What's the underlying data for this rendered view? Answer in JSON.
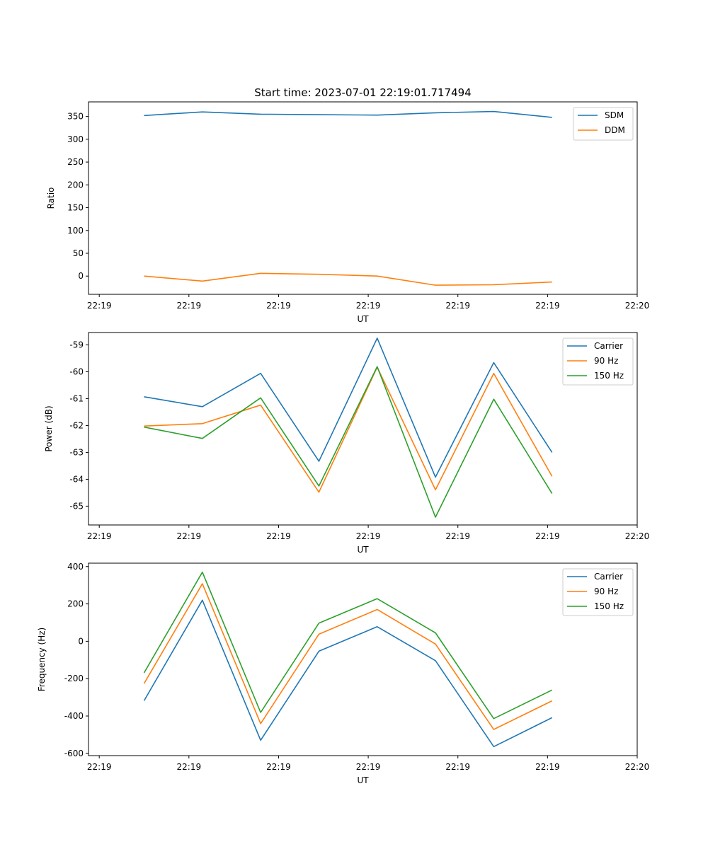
{
  "title": "Start time: 2023-07-01 22:19:01.717494",
  "colors": {
    "blue": "#1f77b4",
    "orange": "#ff7f0e",
    "green": "#2ca02c"
  },
  "chart_data": [
    {
      "id": "ratio",
      "type": "line",
      "ylabel": "Ratio",
      "xlabel": "UT",
      "x_tick_labels": [
        "22:19",
        "22:19",
        "22:19",
        "22:19",
        "22:19",
        "22:19",
        "22:20"
      ],
      "x_ticks": [
        0,
        1,
        2,
        3,
        4,
        5,
        6
      ],
      "xlim": [
        -0.12,
        6.0
      ],
      "x": [
        0.5,
        1.15,
        1.8,
        2.45,
        3.1,
        3.75,
        4.4,
        5.05
      ],
      "ylim": [
        -40,
        382
      ],
      "y_ticks": [
        0,
        50,
        100,
        150,
        200,
        250,
        300,
        350
      ],
      "legend": [
        "SDM",
        "DDM"
      ],
      "series": [
        {
          "name": "SDM",
          "color": "#1f77b4",
          "values": [
            352,
            360,
            355,
            354,
            353,
            358,
            361,
            348
          ]
        },
        {
          "name": "DDM",
          "color": "#ff7f0e",
          "values": [
            0,
            -11,
            6,
            4,
            0,
            -20,
            -19,
            -13
          ]
        }
      ]
    },
    {
      "id": "power",
      "type": "line",
      "ylabel": "Power (dB)",
      "xlabel": "UT",
      "x_tick_labels": [
        "22:19",
        "22:19",
        "22:19",
        "22:19",
        "22:19",
        "22:19",
        "22:20"
      ],
      "x_ticks": [
        0,
        1,
        2,
        3,
        4,
        5,
        6
      ],
      "xlim": [
        -0.12,
        6.0
      ],
      "x": [
        0.5,
        1.15,
        1.8,
        2.45,
        3.1,
        3.75,
        4.4,
        5.05
      ],
      "ylim": [
        -65.7,
        -58.54
      ],
      "y_ticks": [
        -65,
        -64,
        -63,
        -62,
        -61,
        -60,
        -59
      ],
      "legend": [
        "Carrier",
        "90 Hz",
        "150 Hz"
      ],
      "series": [
        {
          "name": "Carrier",
          "color": "#1f77b4",
          "values": [
            -60.93,
            -61.3,
            -60.06,
            -63.33,
            -58.75,
            -63.92,
            -59.66,
            -63.0
          ]
        },
        {
          "name": "90 Hz",
          "color": "#ff7f0e",
          "values": [
            -62.02,
            -61.93,
            -61.24,
            -64.48,
            -59.83,
            -64.39,
            -60.06,
            -63.89
          ]
        },
        {
          "name": "150 Hz",
          "color": "#2ca02c",
          "values": [
            -62.06,
            -62.48,
            -60.97,
            -64.25,
            -59.81,
            -65.41,
            -61.02,
            -64.53
          ]
        }
      ]
    },
    {
      "id": "frequency",
      "type": "line",
      "ylabel": "Frequency (Hz)",
      "xlabel": "UT",
      "x_tick_labels": [
        "22:19",
        "22:19",
        "22:19",
        "22:19",
        "22:19",
        "22:19",
        "22:20"
      ],
      "x_ticks": [
        0,
        1,
        2,
        3,
        4,
        5,
        6
      ],
      "xlim": [
        -0.12,
        6.0
      ],
      "x": [
        0.5,
        1.15,
        1.8,
        2.45,
        3.1,
        3.75,
        4.4,
        5.05
      ],
      "ylim": [
        -612,
        418
      ],
      "y_ticks": [
        -600,
        -400,
        -200,
        0,
        200,
        400
      ],
      "legend": [
        "Carrier",
        "90 Hz",
        "150 Hz"
      ],
      "series": [
        {
          "name": "Carrier",
          "color": "#1f77b4",
          "values": [
            -318,
            220,
            -530,
            -53,
            78,
            -104,
            -564,
            -409
          ]
        },
        {
          "name": "90 Hz",
          "color": "#ff7f0e",
          "values": [
            -226,
            308,
            -441,
            38,
            170,
            -15,
            -472,
            -319
          ]
        },
        {
          "name": "150 Hz",
          "color": "#2ca02c",
          "values": [
            -169,
            370,
            -381,
            97,
            228,
            45,
            -414,
            -261
          ]
        }
      ]
    }
  ]
}
